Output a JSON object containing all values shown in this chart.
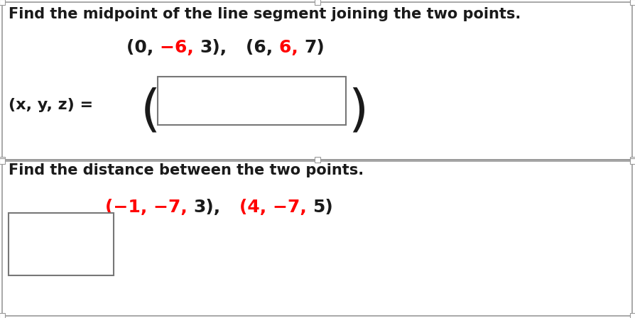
{
  "title1": "Find the midpoint of the line segment joining the two points.",
  "title2": "Find the distance between the two points.",
  "bg_color": "#ffffff",
  "text_color": "#1a1a1a",
  "red_color": "#ff0000",
  "border_color": "#999999",
  "box_color": "#777777",
  "font_size_title": 15,
  "font_size_points": 18,
  "font_size_label": 16,
  "font_size_paren": 52
}
